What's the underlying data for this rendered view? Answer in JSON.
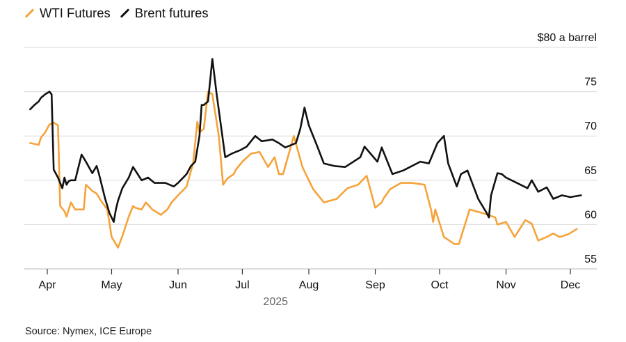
{
  "colors": {
    "wti": "#F5A33A",
    "brent": "#111111",
    "grid": "#d9d9d9",
    "axis": "#d0d0d0"
  },
  "legend": [
    {
      "label": "WTI Futures",
      "icon": "orange-line-icon"
    },
    {
      "label": "Brent futures",
      "icon": "black-line-icon"
    }
  ],
  "source": "Source: Nymex, ICE Europe",
  "chart_data": {
    "type": "line",
    "title": "",
    "xlabel": "2025",
    "ylabel": "$80 a barrel",
    "ylim": [
      55,
      80
    ],
    "y_ticks": [
      {
        "value": 80,
        "label": "$80 a barrel"
      },
      {
        "value": 75,
        "label": "75"
      },
      {
        "value": 70,
        "label": "70"
      },
      {
        "value": 65,
        "label": "65"
      },
      {
        "value": 60,
        "label": "60"
      },
      {
        "value": 55,
        "label": "55"
      }
    ],
    "x_unit": "days since 2025-04-01",
    "xlim": [
      -8,
      252
    ],
    "x_ticks": [
      {
        "value": 0,
        "label": "Apr"
      },
      {
        "value": 30,
        "label": "May"
      },
      {
        "value": 61,
        "label": "Jun"
      },
      {
        "value": 91,
        "label": "Jul"
      },
      {
        "value": 122,
        "label": "Aug"
      },
      {
        "value": 153,
        "label": "Sep"
      },
      {
        "value": 183,
        "label": "Oct"
      },
      {
        "value": 214,
        "label": "Nov"
      },
      {
        "value": 244,
        "label": "Dec"
      }
    ],
    "year_label": "2025",
    "grid": true,
    "legend_position": "top-left",
    "series": [
      {
        "name": "WTI Futures",
        "x": [
          -8,
          -4,
          -3,
          -1,
          1,
          3,
          5,
          6,
          8,
          9,
          11,
          13,
          15,
          17,
          18,
          21,
          23,
          25,
          28,
          30,
          32,
          33,
          35,
          38,
          40,
          41,
          44,
          46,
          49,
          53,
          56,
          58,
          61,
          63,
          65,
          68,
          70,
          71,
          73,
          75,
          77,
          80,
          82,
          84,
          87,
          88,
          91,
          95,
          99,
          103,
          106,
          108,
          110,
          115,
          119,
          120,
          124,
          129,
          135,
          140,
          145,
          149,
          153,
          156,
          157,
          160,
          165,
          170,
          176,
          179,
          180,
          181,
          185,
          190,
          192,
          197,
          203,
          209,
          210,
          214,
          218,
          223,
          226,
          229,
          233,
          236,
          239,
          243,
          247
        ],
        "values": [
          69.2,
          69.0,
          69.8,
          70.4,
          71.3,
          71.5,
          71.2,
          62.1,
          61.5,
          60.9,
          62.5,
          61.7,
          61.7,
          61.7,
          64.5,
          63.8,
          63.5,
          62.7,
          61.7,
          58.6,
          57.8,
          57.4,
          58.7,
          60.9,
          62.1,
          61.9,
          61.7,
          62.5,
          61.7,
          61.1,
          61.7,
          62.5,
          63.3,
          63.8,
          64.3,
          66.9,
          71.6,
          70.4,
          70.8,
          75.0,
          74.7,
          70.0,
          64.5,
          65.2,
          65.7,
          66.2,
          67.1,
          68.0,
          68.2,
          66.5,
          67.6,
          65.7,
          65.7,
          70.0,
          66.5,
          66.0,
          64.0,
          62.5,
          62.9,
          64.1,
          64.5,
          65.5,
          61.9,
          62.5,
          63.0,
          64.0,
          64.7,
          64.7,
          64.5,
          61.7,
          60.3,
          61.7,
          58.6,
          57.8,
          57.8,
          61.7,
          61.3,
          60.8,
          60.0,
          60.3,
          58.6,
          60.5,
          60.1,
          58.2,
          58.6,
          59.0,
          58.6,
          58.9,
          59.5
        ]
      },
      {
        "name": "Brent futures",
        "x": [
          -8,
          -6,
          -4,
          -3,
          -1,
          1,
          2,
          3,
          5,
          7,
          8,
          9,
          10,
          11,
          13,
          16,
          18,
          21,
          23,
          24,
          27,
          29,
          31,
          32,
          33,
          35,
          38,
          40,
          44,
          47,
          50,
          55,
          59,
          61,
          65,
          67,
          69,
          71,
          72,
          73,
          75,
          77,
          79,
          83,
          86,
          90,
          93,
          97,
          100,
          105,
          108,
          111,
          116,
          118,
          120,
          122,
          126,
          129,
          134,
          139,
          146,
          148,
          154,
          156,
          161,
          166,
          174,
          178,
          182,
          185,
          187,
          191,
          193,
          196,
          201,
          205,
          206,
          207,
          210,
          212,
          214,
          219,
          224,
          226,
          229,
          233,
          236,
          240,
          244,
          249
        ],
        "values": [
          73.0,
          73.5,
          73.9,
          74.3,
          74.7,
          75.0,
          74.7,
          66.2,
          65.3,
          64.1,
          65.3,
          64.5,
          64.9,
          65.0,
          65.0,
          67.9,
          67.1,
          65.8,
          66.6,
          65.8,
          62.9,
          61.3,
          60.3,
          61.7,
          62.7,
          64.1,
          65.3,
          66.5,
          65.0,
          65.3,
          64.7,
          64.7,
          64.3,
          64.7,
          65.7,
          66.6,
          67.1,
          70.0,
          73.5,
          73.5,
          73.9,
          78.7,
          74.7,
          67.6,
          68.0,
          68.4,
          68.8,
          70.0,
          69.4,
          69.6,
          69.2,
          68.7,
          69.2,
          70.8,
          73.2,
          71.2,
          68.8,
          66.9,
          66.6,
          66.5,
          67.6,
          68.8,
          67.1,
          68.7,
          65.7,
          66.1,
          67.1,
          66.9,
          69.2,
          70.0,
          66.9,
          64.3,
          65.7,
          66.1,
          62.9,
          61.3,
          60.8,
          63.3,
          65.8,
          65.7,
          65.3,
          64.7,
          64.1,
          65.0,
          63.7,
          64.2,
          62.9,
          63.3,
          63.1,
          63.3
        ]
      }
    ]
  }
}
